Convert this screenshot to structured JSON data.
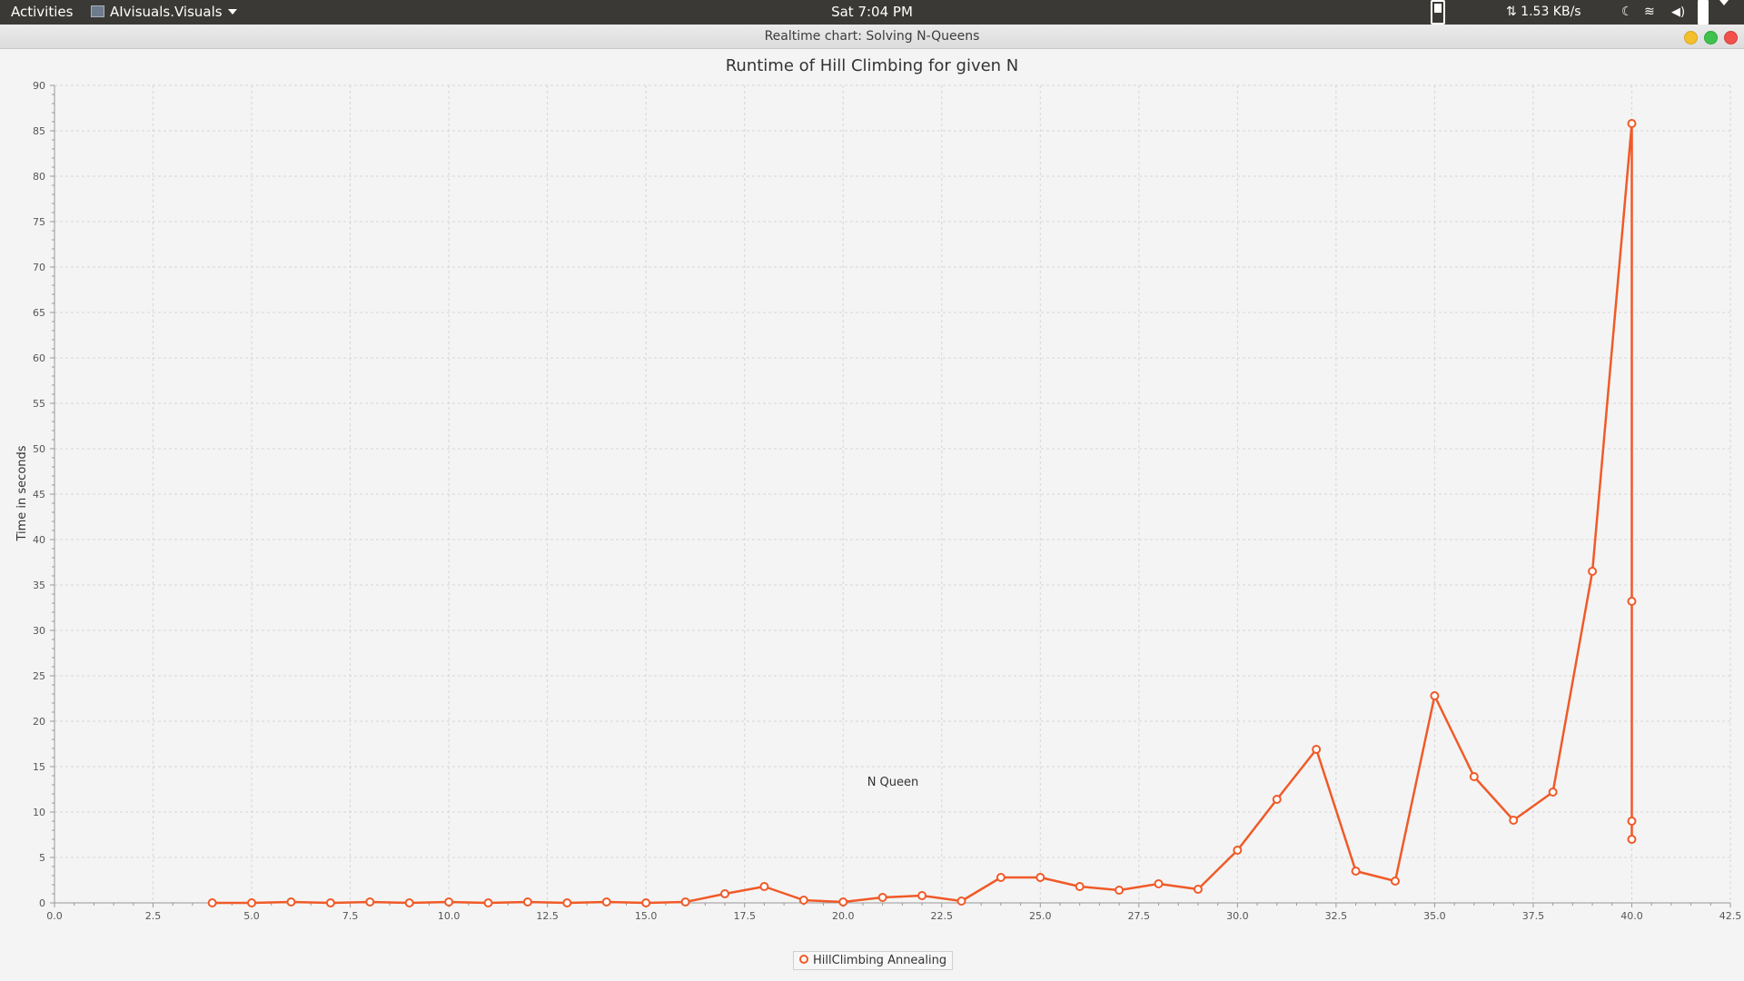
{
  "topbar": {
    "activities": "Activities",
    "app_name": "AIvisuals.Visuals",
    "clock": "Sat  7:04 PM",
    "net_speed": "⇅ 1.53 KB/s"
  },
  "window": {
    "title": "Realtime chart: Solving N-Queens"
  },
  "colors": {
    "series": "#f05a28",
    "topbar": "#3a3935",
    "background": "#f4f4f4"
  },
  "chart_data": {
    "type": "line",
    "title": "Runtime of Hill Climbing for given N",
    "xlabel": "N Queen",
    "ylabel": "Time in seconds",
    "xlim": [
      0,
      42.5
    ],
    "ylim": [
      0,
      90
    ],
    "x_ticks": [
      "0.0",
      "2.5",
      "5.0",
      "7.5",
      "10.0",
      "12.5",
      "15.0",
      "17.5",
      "20.0",
      "22.5",
      "25.0",
      "27.5",
      "30.0",
      "32.5",
      "35.0",
      "37.5",
      "40.0",
      "42.5"
    ],
    "y_ticks": [
      "0",
      "5",
      "10",
      "15",
      "20",
      "25",
      "30",
      "35",
      "40",
      "45",
      "50",
      "55",
      "60",
      "65",
      "70",
      "75",
      "80",
      "85",
      "90"
    ],
    "grid": true,
    "legend_position": "bottom",
    "series": [
      {
        "name": "HillClimbing Annealing",
        "x": [
          4,
          5,
          6,
          7,
          8,
          9,
          10,
          11,
          12,
          13,
          14,
          15,
          16,
          17,
          18,
          19,
          20,
          21,
          22,
          23,
          24,
          25,
          26,
          27,
          28,
          29,
          30,
          31,
          32,
          33,
          34,
          35,
          36,
          37,
          38,
          39,
          40,
          40,
          40,
          40
        ],
        "y": [
          0,
          0,
          0.1,
          0,
          0.1,
          0,
          0.1,
          0,
          0.1,
          0,
          0.1,
          0,
          0.1,
          1.0,
          1.8,
          0.3,
          0.1,
          0.6,
          0.8,
          0.2,
          2.8,
          2.8,
          1.8,
          1.4,
          2.1,
          1.5,
          5.8,
          11.4,
          16.9,
          3.5,
          2.4,
          22.8,
          13.9,
          9.1,
          12.2,
          36.5,
          85.8,
          33.2,
          9.0,
          7.0
        ]
      }
    ]
  }
}
